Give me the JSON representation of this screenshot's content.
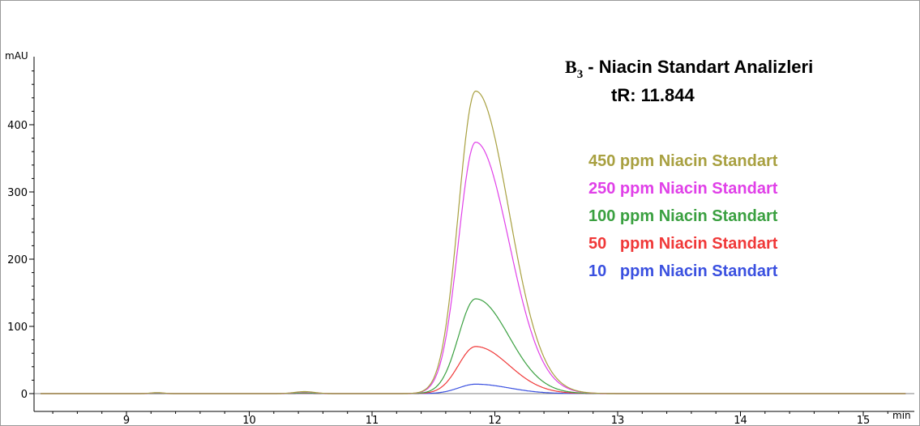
{
  "chart_data": {
    "type": "line",
    "title_prefix": "B",
    "title_subscript": "3",
    "title_rest": " - Niacin Standart Analizleri",
    "subtitle": "tR: 11.844",
    "ylabel": "mAU",
    "xlabel": "min",
    "xlim": [
      8.3,
      15.35
    ],
    "ylim": [
      -12,
      500
    ],
    "x_ticks": [
      9,
      10,
      11,
      12,
      13,
      14,
      15
    ],
    "y_ticks": [
      0,
      100,
      200,
      300,
      400
    ],
    "grid": false,
    "legend_position": "upper-right",
    "peak_retention_time": 11.844,
    "series": [
      {
        "name": "450 ppm Niacin Standart",
        "color": "#a8a040",
        "peak_height": 450
      },
      {
        "name": "250 ppm Niacin Standart",
        "color": "#e040e8",
        "peak_height": 374
      },
      {
        "name": "100 ppm Niacin Standart",
        "color": "#3aa040",
        "peak_height": 141
      },
      {
        "name": "50   ppm Niacin Standart",
        "color": "#f03838",
        "peak_height": 70
      },
      {
        "name": "10   ppm Niacin Standart",
        "color": "#3a50e0",
        "peak_height": 14
      }
    ]
  }
}
